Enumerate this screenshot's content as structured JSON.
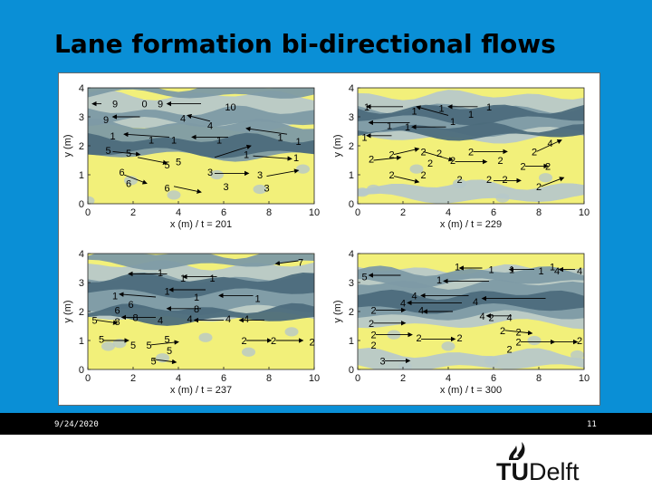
{
  "slide": {
    "title": "Lane formation bi-directional flows",
    "footer_date": "9/24/2020",
    "page_number": "11"
  },
  "logo": {
    "tu": "TU",
    "delft": "Delft"
  },
  "colors": {
    "background": "#0a8fd6",
    "footer_band": "#000000",
    "plot_yellow": "#f2f07a",
    "plot_light": "#b7c8c9",
    "plot_mid": "#7d9aa5",
    "plot_dark": "#4c6c7c"
  },
  "chart_data": {
    "type": "contour-quiver",
    "panels": [
      {
        "xlabel": "x (m) / t = 201",
        "ylabel": "y (m)",
        "xticks": [
          "0",
          "2",
          "4",
          "6",
          "8",
          "10"
        ],
        "yticks": [
          "0",
          "1",
          "2",
          "3",
          "4"
        ],
        "xlim": [
          0,
          10
        ],
        "ylim": [
          0,
          4
        ],
        "labels": [
          {
            "t": "9",
            "x": 1.2,
            "y": 3.45
          },
          {
            "t": "0",
            "x": 2.5,
            "y": 3.45
          },
          {
            "t": "9",
            "x": 3.2,
            "y": 3.45
          },
          {
            "t": "10",
            "x": 6.3,
            "y": 3.35
          },
          {
            "t": "9",
            "x": 0.8,
            "y": 2.9
          },
          {
            "t": "4",
            "x": 4.2,
            "y": 2.95
          },
          {
            "t": "4",
            "x": 5.4,
            "y": 2.7
          },
          {
            "t": "1",
            "x": 1.1,
            "y": 2.35
          },
          {
            "t": "1",
            "x": 2.8,
            "y": 2.2
          },
          {
            "t": "1",
            "x": 3.8,
            "y": 2.2
          },
          {
            "t": "1",
            "x": 5.8,
            "y": 2.2
          },
          {
            "t": "1",
            "x": 8.5,
            "y": 2.3
          },
          {
            "t": "1",
            "x": 9.3,
            "y": 2.15
          },
          {
            "t": "5",
            "x": 0.9,
            "y": 1.85
          },
          {
            "t": "5",
            "x": 1.8,
            "y": 1.75
          },
          {
            "t": "5",
            "x": 4.0,
            "y": 1.45
          },
          {
            "t": "5",
            "x": 3.5,
            "y": 1.35
          },
          {
            "t": "1",
            "x": 7.0,
            "y": 1.7
          },
          {
            "t": "1",
            "x": 9.2,
            "y": 1.6
          },
          {
            "t": "6",
            "x": 1.5,
            "y": 1.1
          },
          {
            "t": "6",
            "x": 1.8,
            "y": 0.7
          },
          {
            "t": "6",
            "x": 3.5,
            "y": 0.55
          },
          {
            "t": "3",
            "x": 5.4,
            "y": 1.1
          },
          {
            "t": "3",
            "x": 7.6,
            "y": 1.0
          },
          {
            "t": "3",
            "x": 6.1,
            "y": 0.6
          },
          {
            "t": "3",
            "x": 7.9,
            "y": 0.55
          }
        ],
        "arrows": [
          {
            "x": 0.6,
            "y": 3.45,
            "dx": -0.4,
            "dy": 0
          },
          {
            "x": 5.0,
            "y": 3.45,
            "dx": -1.5,
            "dy": 0
          },
          {
            "x": 2.3,
            "y": 3.0,
            "dx": -1.2,
            "dy": 0
          },
          {
            "x": 5.4,
            "y": 2.85,
            "dx": -1.0,
            "dy": 0.2
          },
          {
            "x": 3.6,
            "y": 2.3,
            "dx": -2.0,
            "dy": 0.1
          },
          {
            "x": 6.2,
            "y": 2.3,
            "dx": -1.6,
            "dy": 0
          },
          {
            "x": 8.8,
            "y": 2.4,
            "dx": -1.8,
            "dy": 0.2
          },
          {
            "x": 1.1,
            "y": 1.8,
            "dx": 1.2,
            "dy": -0.1
          },
          {
            "x": 2.2,
            "y": 1.6,
            "dx": 1.3,
            "dy": -0.2
          },
          {
            "x": 5.6,
            "y": 1.6,
            "dx": 1.6,
            "dy": 0.4
          },
          {
            "x": 7.3,
            "y": 1.65,
            "dx": 1.7,
            "dy": -0.1
          },
          {
            "x": 1.6,
            "y": 1.0,
            "dx": 1.0,
            "dy": -0.3
          },
          {
            "x": 3.8,
            "y": 0.6,
            "dx": 1.2,
            "dy": -0.2
          },
          {
            "x": 5.6,
            "y": 1.05,
            "dx": 1.5,
            "dy": 0
          },
          {
            "x": 7.9,
            "y": 0.95,
            "dx": 1.4,
            "dy": 0.2
          }
        ]
      },
      {
        "xlabel": "x (m) / t = 229",
        "ylabel": "y (m)",
        "xticks": [
          "0",
          "2",
          "4",
          "6",
          "8",
          "10"
        ],
        "yticks": [
          "0",
          "1",
          "2",
          "3",
          "4"
        ],
        "xlim": [
          0,
          10
        ],
        "ylim": [
          0,
          4
        ],
        "labels": [
          {
            "t": "1",
            "x": 0.4,
            "y": 3.35
          },
          {
            "t": "1",
            "x": 2.5,
            "y": 3.2
          },
          {
            "t": "1",
            "x": 3.7,
            "y": 3.3
          },
          {
            "t": "1",
            "x": 5.0,
            "y": 3.1
          },
          {
            "t": "1",
            "x": 5.8,
            "y": 3.35
          },
          {
            "t": "1",
            "x": 1.4,
            "y": 2.7
          },
          {
            "t": "1",
            "x": 2.2,
            "y": 2.65
          },
          {
            "t": "1",
            "x": 4.2,
            "y": 2.85
          },
          {
            "t": "1",
            "x": 0.3,
            "y": 2.3
          },
          {
            "t": "4",
            "x": 8.5,
            "y": 2.1
          },
          {
            "t": "2",
            "x": 1.5,
            "y": 1.7
          },
          {
            "t": "2",
            "x": 2.9,
            "y": 1.8
          },
          {
            "t": "2",
            "x": 3.6,
            "y": 1.75
          },
          {
            "t": "2",
            "x": 5.0,
            "y": 1.8
          },
          {
            "t": "2",
            "x": 7.8,
            "y": 1.8
          },
          {
            "t": "2",
            "x": 0.6,
            "y": 1.55
          },
          {
            "t": "2",
            "x": 3.2,
            "y": 1.4
          },
          {
            "t": "2",
            "x": 4.2,
            "y": 1.5
          },
          {
            "t": "2",
            "x": 6.3,
            "y": 1.5
          },
          {
            "t": "2",
            "x": 7.3,
            "y": 1.3
          },
          {
            "t": "2",
            "x": 8.4,
            "y": 1.3
          },
          {
            "t": "2",
            "x": 1.5,
            "y": 1.0
          },
          {
            "t": "2",
            "x": 2.9,
            "y": 1.0
          },
          {
            "t": "2",
            "x": 4.5,
            "y": 0.85
          },
          {
            "t": "2",
            "x": 5.8,
            "y": 0.85
          },
          {
            "t": "2",
            "x": 6.5,
            "y": 0.85
          },
          {
            "t": "2",
            "x": 8.0,
            "y": 0.6
          }
        ],
        "arrows": [
          {
            "x": 2.0,
            "y": 3.35,
            "dx": -1.6,
            "dy": 0
          },
          {
            "x": 4.0,
            "y": 3.05,
            "dx": -1.4,
            "dy": 0.3
          },
          {
            "x": 5.3,
            "y": 3.35,
            "dx": -1.3,
            "dy": 0
          },
          {
            "x": 2.3,
            "y": 2.8,
            "dx": -1.8,
            "dy": 0
          },
          {
            "x": 3.9,
            "y": 2.65,
            "dx": -1.5,
            "dy": 0
          },
          {
            "x": 1.5,
            "y": 2.35,
            "dx": -1.1,
            "dy": 0
          },
          {
            "x": 1.6,
            "y": 1.7,
            "dx": 1.1,
            "dy": 0.2
          },
          {
            "x": 2.9,
            "y": 1.8,
            "dx": 1.3,
            "dy": -0.3
          },
          {
            "x": 5.1,
            "y": 1.8,
            "dx": 1.5,
            "dy": 0
          },
          {
            "x": 7.9,
            "y": 1.8,
            "dx": 1.1,
            "dy": 0.4
          },
          {
            "x": 0.7,
            "y": 1.5,
            "dx": 1.2,
            "dy": 0.1
          },
          {
            "x": 4.3,
            "y": 1.45,
            "dx": 1.4,
            "dy": 0
          },
          {
            "x": 7.4,
            "y": 1.3,
            "dx": 1.0,
            "dy": 0
          },
          {
            "x": 1.6,
            "y": 0.95,
            "dx": 1.1,
            "dy": -0.2
          },
          {
            "x": 6.0,
            "y": 0.8,
            "dx": 1.2,
            "dy": 0
          },
          {
            "x": 8.1,
            "y": 0.6,
            "dx": 1.0,
            "dy": 0.3
          }
        ]
      },
      {
        "xlabel": "x (m) / t = 237",
        "ylabel": "y (m)",
        "xticks": [
          "0",
          "2",
          "4",
          "6",
          "8",
          "10"
        ],
        "yticks": [
          "0",
          "1",
          "2",
          "3",
          "4"
        ],
        "xlim": [
          0,
          10
        ],
        "ylim": [
          0,
          4
        ],
        "labels": [
          {
            "t": "7",
            "x": 9.4,
            "y": 3.7
          },
          {
            "t": "1",
            "x": 3.2,
            "y": 3.35
          },
          {
            "t": "1",
            "x": 4.2,
            "y": 3.15
          },
          {
            "t": "1",
            "x": 5.5,
            "y": 3.15
          },
          {
            "t": "1",
            "x": 3.5,
            "y": 2.7
          },
          {
            "t": "1",
            "x": 4.8,
            "y": 2.5
          },
          {
            "t": "1",
            "x": 1.2,
            "y": 2.55
          },
          {
            "t": "1",
            "x": 7.5,
            "y": 2.45
          },
          {
            "t": "6",
            "x": 1.9,
            "y": 2.25
          },
          {
            "t": "8",
            "x": 4.8,
            "y": 2.1
          },
          {
            "t": "8",
            "x": 2.1,
            "y": 1.8
          },
          {
            "t": "8",
            "x": 1.3,
            "y": 1.65
          },
          {
            "t": "6",
            "x": 1.3,
            "y": 2.05
          },
          {
            "t": "5",
            "x": 0.3,
            "y": 1.7
          },
          {
            "t": "4",
            "x": 3.2,
            "y": 1.7
          },
          {
            "t": "4",
            "x": 4.5,
            "y": 1.75
          },
          {
            "t": "4",
            "x": 6.2,
            "y": 1.75
          },
          {
            "t": "4",
            "x": 7.0,
            "y": 1.75
          },
          {
            "t": "5",
            "x": 0.6,
            "y": 1.05
          },
          {
            "t": "5",
            "x": 2.0,
            "y": 0.85
          },
          {
            "t": "5",
            "x": 3.5,
            "y": 1.05
          },
          {
            "t": "5",
            "x": 3.6,
            "y": 0.65
          },
          {
            "t": "5",
            "x": 2.7,
            "y": 0.85
          },
          {
            "t": "2",
            "x": 6.9,
            "y": 1.0
          },
          {
            "t": "2",
            "x": 8.2,
            "y": 1.0
          },
          {
            "t": "2",
            "x": 9.9,
            "y": 0.95
          },
          {
            "t": "5",
            "x": 2.9,
            "y": 0.3
          }
        ],
        "arrows": [
          {
            "x": 9.3,
            "y": 3.75,
            "dx": -1.0,
            "dy": -0.1
          },
          {
            "x": 3.5,
            "y": 3.3,
            "dx": -1.7,
            "dy": 0
          },
          {
            "x": 5.7,
            "y": 3.2,
            "dx": -1.5,
            "dy": 0
          },
          {
            "x": 5.2,
            "y": 2.75,
            "dx": -1.6,
            "dy": 0
          },
          {
            "x": 7.3,
            "y": 2.55,
            "dx": -1.5,
            "dy": 0
          },
          {
            "x": 3.0,
            "y": 2.5,
            "dx": -1.6,
            "dy": 0.1
          },
          {
            "x": 5.0,
            "y": 2.1,
            "dx": -1.5,
            "dy": 0
          },
          {
            "x": 3.0,
            "y": 1.8,
            "dx": -1.5,
            "dy": 0
          },
          {
            "x": 6.0,
            "y": 1.7,
            "dx": -1.3,
            "dy": 0
          },
          {
            "x": 7.8,
            "y": 1.7,
            "dx": -1.1,
            "dy": 0
          },
          {
            "x": 0.4,
            "y": 1.7,
            "dx": 0.9,
            "dy": -0.1
          },
          {
            "x": 0.7,
            "y": 1.0,
            "dx": 1.1,
            "dy": 0
          },
          {
            "x": 2.8,
            "y": 0.85,
            "dx": 1.2,
            "dy": 0.1
          },
          {
            "x": 7.0,
            "y": 1.0,
            "dx": 1.1,
            "dy": 0
          },
          {
            "x": 8.3,
            "y": 1.0,
            "dx": 1.2,
            "dy": 0
          },
          {
            "x": 2.9,
            "y": 0.35,
            "dx": 1.0,
            "dy": -0.1
          }
        ]
      },
      {
        "xlabel": "x (m) / t = 300",
        "ylabel": "y (m)",
        "xticks": [
          "0",
          "2",
          "4",
          "6",
          "8",
          "10"
        ],
        "yticks": [
          "0",
          "1",
          "2",
          "3",
          "4"
        ],
        "xlim": [
          0,
          10
        ],
        "ylim": [
          0,
          4
        ],
        "labels": [
          {
            "t": "1",
            "x": 4.4,
            "y": 3.55
          },
          {
            "t": "1",
            "x": 5.9,
            "y": 3.45
          },
          {
            "t": "1",
            "x": 6.8,
            "y": 3.45
          },
          {
            "t": "1",
            "x": 8.6,
            "y": 3.55
          },
          {
            "t": "1",
            "x": 8.1,
            "y": 3.4
          },
          {
            "t": "4",
            "x": 8.8,
            "y": 3.4
          },
          {
            "t": "4",
            "x": 9.8,
            "y": 3.4
          },
          {
            "t": "5",
            "x": 0.3,
            "y": 3.2
          },
          {
            "t": "1",
            "x": 3.6,
            "y": 3.1
          },
          {
            "t": "4",
            "x": 2.5,
            "y": 2.55
          },
          {
            "t": "4",
            "x": 2.0,
            "y": 2.3
          },
          {
            "t": "4",
            "x": 2.8,
            "y": 2.05
          },
          {
            "t": "4",
            "x": 5.2,
            "y": 2.35
          },
          {
            "t": "4",
            "x": 5.5,
            "y": 1.85
          },
          {
            "t": "2",
            "x": 0.7,
            "y": 2.05
          },
          {
            "t": "2",
            "x": 0.6,
            "y": 1.6
          },
          {
            "t": "2",
            "x": 5.9,
            "y": 1.8
          },
          {
            "t": "4",
            "x": 6.7,
            "y": 1.8
          },
          {
            "t": "2",
            "x": 6.4,
            "y": 1.35
          },
          {
            "t": "2",
            "x": 7.1,
            "y": 1.3
          },
          {
            "t": "2",
            "x": 0.7,
            "y": 1.2
          },
          {
            "t": "2",
            "x": 0.7,
            "y": 0.85
          },
          {
            "t": "2",
            "x": 2.7,
            "y": 1.1
          },
          {
            "t": "2",
            "x": 4.5,
            "y": 1.1
          },
          {
            "t": "2",
            "x": 7.1,
            "y": 0.95
          },
          {
            "t": "2",
            "x": 6.7,
            "y": 0.7
          },
          {
            "t": "2",
            "x": 9.8,
            "y": 1.0
          },
          {
            "t": "3",
            "x": 1.1,
            "y": 0.3
          }
        ],
        "arrows": [
          {
            "x": 5.5,
            "y": 3.5,
            "dx": -1.0,
            "dy": 0
          },
          {
            "x": 7.8,
            "y": 3.45,
            "dx": -1.1,
            "dy": 0
          },
          {
            "x": 9.6,
            "y": 3.45,
            "dx": -0.7,
            "dy": 0
          },
          {
            "x": 1.9,
            "y": 3.25,
            "dx": -1.4,
            "dy": 0
          },
          {
            "x": 5.8,
            "y": 3.05,
            "dx": -2.0,
            "dy": 0
          },
          {
            "x": 4.9,
            "y": 2.55,
            "dx": -2.1,
            "dy": 0
          },
          {
            "x": 4.6,
            "y": 2.3,
            "dx": -2.4,
            "dy": 0
          },
          {
            "x": 8.3,
            "y": 2.45,
            "dx": -2.8,
            "dy": 0
          },
          {
            "x": 4.2,
            "y": 2.0,
            "dx": -1.3,
            "dy": 0
          },
          {
            "x": 6.8,
            "y": 1.85,
            "dx": -1.1,
            "dy": 0
          },
          {
            "x": 0.8,
            "y": 2.05,
            "dx": 1.3,
            "dy": 0
          },
          {
            "x": 0.7,
            "y": 1.6,
            "dx": 1.4,
            "dy": 0
          },
          {
            "x": 6.5,
            "y": 1.35,
            "dx": 1.2,
            "dy": -0.1
          },
          {
            "x": 0.8,
            "y": 1.2,
            "dx": 1.6,
            "dy": 0
          },
          {
            "x": 2.8,
            "y": 1.05,
            "dx": 1.5,
            "dy": 0
          },
          {
            "x": 7.2,
            "y": 0.95,
            "dx": 1.5,
            "dy": 0
          },
          {
            "x": 8.6,
            "y": 0.95,
            "dx": 1.1,
            "dy": 0
          },
          {
            "x": 1.2,
            "y": 0.3,
            "dx": 1.1,
            "dy": 0
          }
        ]
      }
    ]
  }
}
